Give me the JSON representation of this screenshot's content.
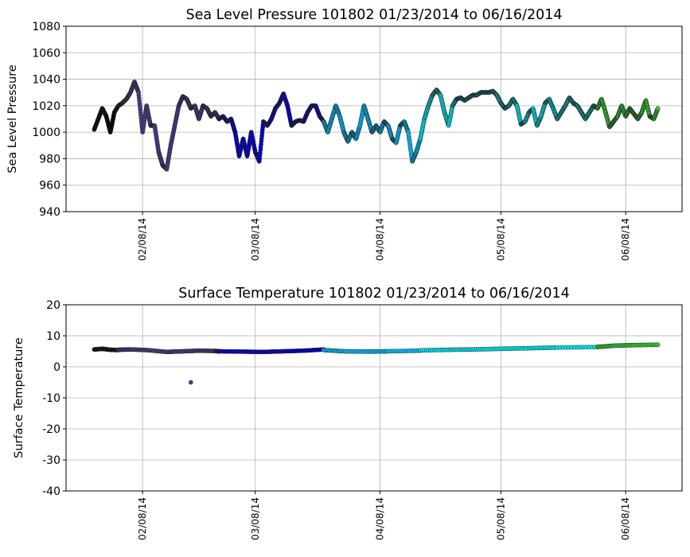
{
  "chart_data": [
    {
      "type": "scatter",
      "title": "Sea Level Pressure 101802  01/23/2014 to 06/16/2014",
      "ylabel": "Sea Level Pressure",
      "xlabel": "",
      "x_axis_type": "date",
      "xlim": [
        "2014-01-20",
        "2014-06-22"
      ],
      "ylim": [
        940,
        1080
      ],
      "yticks": [
        940,
        960,
        980,
        1000,
        1020,
        1040,
        1060,
        1080
      ],
      "xticks": [
        "2014-02-08",
        "2014-03-08",
        "2014-04-08",
        "2014-05-08",
        "2014-06-08"
      ],
      "xtick_labels": [
        "02/08/14",
        "03/08/14",
        "04/08/14",
        "05/08/14",
        "06/08/14"
      ],
      "grid": true,
      "series": [
        {
          "color": "#000000",
          "x": [
            "2014-01-27",
            "2014-01-28",
            "2014-01-29",
            "2014-01-30",
            "2014-01-31",
            "2014-02-01",
            "2014-02-02",
            "2014-02-03"
          ],
          "y": [
            1002,
            1010,
            1018,
            1012,
            1000,
            1015,
            1020,
            1022
          ]
        },
        {
          "color": "#483d8b",
          "x": [
            "2014-02-03",
            "2014-02-04",
            "2014-02-05",
            "2014-02-06",
            "2014-02-07",
            "2014-02-08",
            "2014-02-09",
            "2014-02-10",
            "2014-02-11",
            "2014-02-12",
            "2014-02-13",
            "2014-02-14",
            "2014-02-15",
            "2014-02-16",
            "2014-02-17",
            "2014-02-18",
            "2014-02-19",
            "2014-02-20",
            "2014-02-21",
            "2014-02-22",
            "2014-02-23",
            "2014-02-24",
            "2014-02-25",
            "2014-02-26",
            "2014-02-27"
          ],
          "y": [
            1022,
            1025,
            1030,
            1038,
            1030,
            1000,
            1020,
            1005,
            1005,
            985,
            975,
            972,
            990,
            1005,
            1020,
            1027,
            1025,
            1018,
            1020,
            1010,
            1020,
            1018,
            1012,
            1015,
            1010
          ]
        },
        {
          "color": "#0000cd",
          "x": [
            "2014-02-27",
            "2014-02-28",
            "2014-03-01",
            "2014-03-02",
            "2014-03-03",
            "2014-03-04",
            "2014-03-05",
            "2014-03-06",
            "2014-03-07",
            "2014-03-08",
            "2014-03-09",
            "2014-03-10",
            "2014-03-11",
            "2014-03-12",
            "2014-03-13",
            "2014-03-14",
            "2014-03-15",
            "2014-03-16",
            "2014-03-17",
            "2014-03-18",
            "2014-03-19",
            "2014-03-20",
            "2014-03-21",
            "2014-03-22",
            "2014-03-23",
            "2014-03-24",
            "2014-03-25"
          ],
          "y": [
            1010,
            1012,
            1008,
            1010,
            1000,
            982,
            995,
            982,
            1000,
            985,
            978,
            1008,
            1005,
            1010,
            1018,
            1022,
            1029,
            1020,
            1005,
            1008,
            1009,
            1008,
            1015,
            1020,
            1020,
            1012,
            1008
          ]
        },
        {
          "color": "#00bfff",
          "x": [
            "2014-03-25",
            "2014-03-26",
            "2014-03-27",
            "2014-03-28",
            "2014-03-29",
            "2014-03-30",
            "2014-03-31",
            "2014-04-01",
            "2014-04-02",
            "2014-04-03",
            "2014-04-04",
            "2014-04-05",
            "2014-04-06",
            "2014-04-07",
            "2014-04-08",
            "2014-04-09",
            "2014-04-10",
            "2014-04-11",
            "2014-04-12",
            "2014-04-13",
            "2014-04-14",
            "2014-04-15",
            "2014-04-16",
            "2014-04-17",
            "2014-04-18"
          ],
          "y": [
            1008,
            1000,
            1010,
            1020,
            1012,
            1000,
            993,
            1000,
            995,
            1005,
            1020,
            1010,
            1000,
            1005,
            1000,
            1008,
            1005,
            995,
            992,
            1005,
            1008,
            1000,
            978,
            985,
            995
          ]
        },
        {
          "color": "#00e5ee",
          "x": [
            "2014-04-18",
            "2014-04-19",
            "2014-04-20",
            "2014-04-21",
            "2014-04-22",
            "2014-04-23",
            "2014-04-24",
            "2014-04-25",
            "2014-04-26",
            "2014-04-27",
            "2014-04-28",
            "2014-04-29",
            "2014-04-30",
            "2014-05-01",
            "2014-05-02",
            "2014-05-03",
            "2014-05-04",
            "2014-05-05",
            "2014-05-06",
            "2014-05-07",
            "2014-05-08",
            "2014-05-09",
            "2014-05-10",
            "2014-05-11",
            "2014-05-12",
            "2014-05-13",
            "2014-05-14",
            "2014-05-15",
            "2014-05-16",
            "2014-05-17",
            "2014-05-18",
            "2014-05-19",
            "2014-05-20",
            "2014-05-21",
            "2014-05-22",
            "2014-05-23",
            "2014-05-24",
            "2014-05-25",
            "2014-05-26",
            "2014-05-27",
            "2014-05-28",
            "2014-05-29",
            "2014-05-30",
            "2014-05-31",
            "2014-06-01"
          ],
          "y": [
            995,
            1010,
            1020,
            1028,
            1032,
            1028,
            1015,
            1005,
            1020,
            1025,
            1026,
            1024,
            1026,
            1028,
            1028,
            1030,
            1030,
            1030,
            1031,
            1028,
            1022,
            1018,
            1020,
            1025,
            1020,
            1006,
            1008,
            1015,
            1018,
            1005,
            1012,
            1022,
            1025,
            1018,
            1010,
            1015,
            1020,
            1026,
            1022,
            1020,
            1015,
            1010,
            1015,
            1020,
            1018
          ]
        },
        {
          "color": "#32cd32",
          "x": [
            "2014-06-01",
            "2014-06-02",
            "2014-06-03",
            "2014-06-04",
            "2014-06-05",
            "2014-06-06",
            "2014-06-07",
            "2014-06-08",
            "2014-06-09",
            "2014-06-10",
            "2014-06-11",
            "2014-06-12",
            "2014-06-13",
            "2014-06-14",
            "2014-06-15",
            "2014-06-16"
          ],
          "y": [
            1018,
            1025,
            1015,
            1004,
            1008,
            1012,
            1020,
            1012,
            1018,
            1014,
            1010,
            1015,
            1024,
            1012,
            1010,
            1018
          ]
        }
      ]
    },
    {
      "type": "scatter",
      "title": "Surface Temperature 101802  01/23/2014 to 06/16/2014",
      "ylabel": "Surface Temperature",
      "xlabel": "",
      "x_axis_type": "date",
      "xlim": [
        "2014-01-20",
        "2014-06-22"
      ],
      "ylim": [
        -40,
        20
      ],
      "yticks": [
        -40,
        -30,
        -20,
        -10,
        0,
        10,
        20
      ],
      "xticks": [
        "2014-02-08",
        "2014-03-08",
        "2014-04-08",
        "2014-05-08",
        "2014-06-08"
      ],
      "xtick_labels": [
        "02/08/14",
        "03/08/14",
        "04/08/14",
        "05/08/14",
        "06/08/14"
      ],
      "grid": true,
      "series": [
        {
          "color": "#000000",
          "x": [
            "2014-01-27",
            "2014-01-29",
            "2014-01-31",
            "2014-02-02"
          ],
          "y": [
            5.6,
            5.8,
            5.5,
            5.4
          ]
        },
        {
          "color": "#483d8b",
          "x": [
            "2014-02-02",
            "2014-02-05",
            "2014-02-09",
            "2014-02-14",
            "2014-02-18",
            "2014-02-22",
            "2014-02-26",
            "2014-02-27"
          ],
          "y": [
            5.5,
            5.6,
            5.4,
            4.8,
            5.0,
            5.2,
            5.1,
            5.0
          ]
        },
        {
          "color": "#483d8b",
          "x": [
            "2014-02-20"
          ],
          "y": [
            -5.0
          ]
        },
        {
          "color": "#0000cd",
          "x": [
            "2014-02-27",
            "2014-03-05",
            "2014-03-10",
            "2014-03-15",
            "2014-03-20",
            "2014-03-25"
          ],
          "y": [
            5.0,
            4.9,
            4.8,
            5.0,
            5.2,
            5.6
          ]
        },
        {
          "color": "#00bfff",
          "x": [
            "2014-03-25",
            "2014-03-30",
            "2014-04-05",
            "2014-04-10",
            "2014-04-18"
          ],
          "y": [
            5.4,
            5.0,
            4.9,
            5.0,
            5.2
          ]
        },
        {
          "color": "#00e5ee",
          "x": [
            "2014-04-18",
            "2014-04-25",
            "2014-05-01",
            "2014-05-08",
            "2014-05-15",
            "2014-05-22",
            "2014-06-01"
          ],
          "y": [
            5.3,
            5.5,
            5.6,
            5.8,
            6.0,
            6.2,
            6.4
          ]
        },
        {
          "color": "#32cd32",
          "x": [
            "2014-06-01",
            "2014-06-05",
            "2014-06-10",
            "2014-06-16"
          ],
          "y": [
            6.4,
            6.8,
            7.0,
            7.1
          ]
        }
      ]
    }
  ]
}
